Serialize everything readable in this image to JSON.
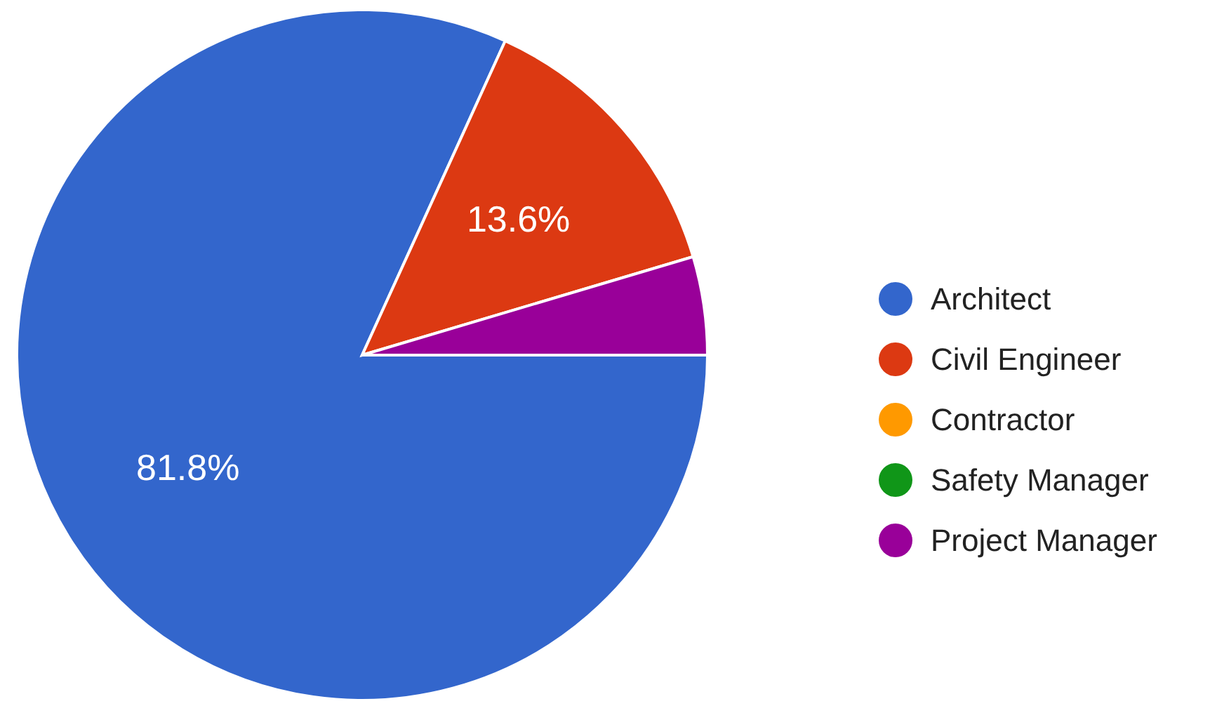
{
  "chart_data": {
    "type": "pie",
    "categories": [
      "Architect",
      "Civil Engineer",
      "Contractor",
      "Safety Manager",
      "Project Manager"
    ],
    "values": [
      81.8,
      13.6,
      0,
      0,
      4.6
    ],
    "colors": [
      "#3366cc",
      "#dc3912",
      "#ff9900",
      "#109618",
      "#990099"
    ],
    "value_labels": [
      "81.8%",
      "13.6%",
      null,
      null,
      null
    ],
    "legend": "right"
  }
}
